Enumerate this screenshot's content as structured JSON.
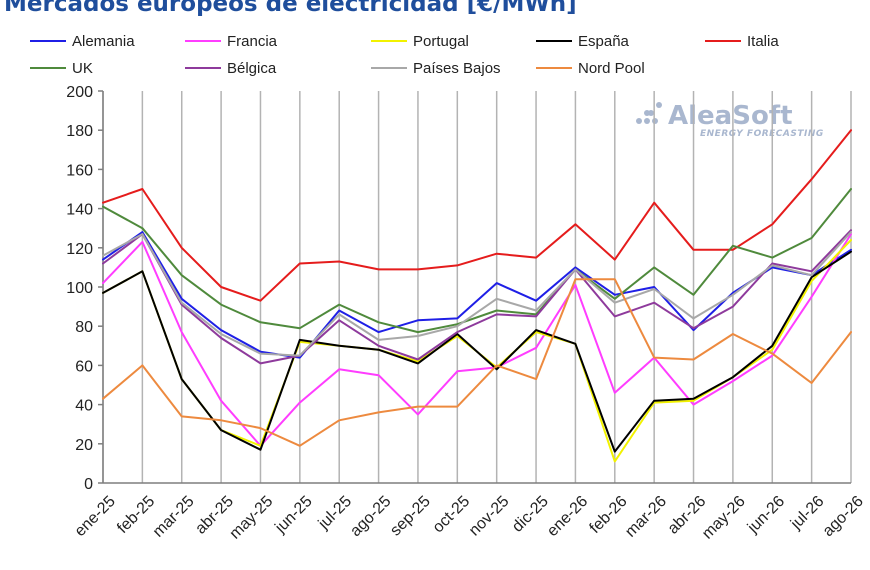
{
  "chart_data": {
    "type": "line",
    "title": "Mercados europeos de electricidad [€/MWh]",
    "xlabel": "",
    "ylabel": "",
    "ylim": [
      0,
      200
    ],
    "yticks": [
      0,
      20,
      40,
      60,
      80,
      100,
      120,
      140,
      160,
      180,
      200
    ],
    "grid": "vertical",
    "legend_position": "top",
    "categories": [
      "ene-25",
      "feb-25",
      "mar-25",
      "abr-25",
      "may-25",
      "jun-25",
      "jul-25",
      "ago-25",
      "sep-25",
      "oct-25",
      "nov-25",
      "dic-25",
      "ene-26",
      "feb-26",
      "mar-26",
      "abr-26",
      "may-26",
      "jun-26",
      "jul-26",
      "ago-26"
    ],
    "series": [
      {
        "name": "Alemania",
        "color": "#1f1fe6",
        "values": [
          114,
          128,
          94,
          78,
          67,
          64,
          88,
          77,
          83,
          84,
          102,
          93,
          110,
          96,
          100,
          78,
          97,
          110,
          106,
          119
        ]
      },
      {
        "name": "Francia",
        "color": "#ff3dff",
        "values": [
          102,
          123,
          77,
          42,
          19,
          41,
          58,
          55,
          35,
          57,
          59,
          69,
          101,
          46,
          64,
          40,
          52,
          65,
          95,
          127
        ]
      },
      {
        "name": "Portugal",
        "color": "#f2f200",
        "values": [
          97,
          108,
          53,
          27,
          19,
          72,
          70,
          68,
          62,
          75,
          59,
          77,
          71,
          11,
          41,
          42,
          54,
          68,
          103,
          124
        ]
      },
      {
        "name": "España",
        "color": "#000000",
        "values": [
          97,
          108,
          53,
          27,
          17,
          73,
          70,
          68,
          61,
          76,
          58,
          78,
          71,
          16,
          42,
          43,
          54,
          70,
          105,
          118
        ]
      },
      {
        "name": "Italia",
        "color": "#e51c1c",
        "values": [
          143,
          150,
          120,
          100,
          93,
          112,
          113,
          109,
          109,
          111,
          117,
          115,
          132,
          114,
          143,
          119,
          119,
          132,
          155,
          180
        ]
      },
      {
        "name": "UK",
        "color": "#4f8a3c",
        "values": [
          141,
          130,
          106,
          91,
          82,
          79,
          91,
          82,
          77,
          81,
          88,
          86,
          109,
          94,
          110,
          96,
          121,
          115,
          125,
          150
        ]
      },
      {
        "name": "Bélgica",
        "color": "#8e3a9c",
        "values": [
          112,
          127,
          91,
          74,
          61,
          65,
          83,
          70,
          63,
          77,
          86,
          85,
          109,
          85,
          92,
          79,
          90,
          112,
          108,
          129
        ]
      },
      {
        "name": "Países Bajos",
        "color": "#a8a8a8",
        "values": [
          116,
          127,
          92,
          76,
          66,
          65,
          86,
          73,
          75,
          80,
          94,
          88,
          109,
          92,
          99,
          84,
          96,
          111,
          106,
          128
        ]
      },
      {
        "name": "Nord Pool",
        "color": "#ed8a3f",
        "values": [
          43,
          60,
          34,
          32,
          28,
          19,
          32,
          36,
          39,
          39,
          60,
          53,
          104,
          104,
          64,
          63,
          76,
          66,
          51,
          77
        ]
      }
    ]
  },
  "legend": [
    {
      "label": "Alemania",
      "color": "#1f1fe6"
    },
    {
      "label": "Francia",
      "color": "#ff3dff"
    },
    {
      "label": "Portugal",
      "color": "#f2f200"
    },
    {
      "label": "España",
      "color": "#000000"
    },
    {
      "label": "Italia",
      "color": "#e51c1c"
    },
    {
      "label": "UK",
      "color": "#4f8a3c"
    },
    {
      "label": "Bélgica",
      "color": "#8e3a9c"
    },
    {
      "label": "Países Bajos",
      "color": "#a8a8a8"
    },
    {
      "label": "Nord Pool",
      "color": "#ed8a3f"
    }
  ],
  "watermark": {
    "brand": "AleaSoft",
    "tagline": "ENERGY FORECASTING",
    "icon": "aleasoft-dots-logo"
  }
}
